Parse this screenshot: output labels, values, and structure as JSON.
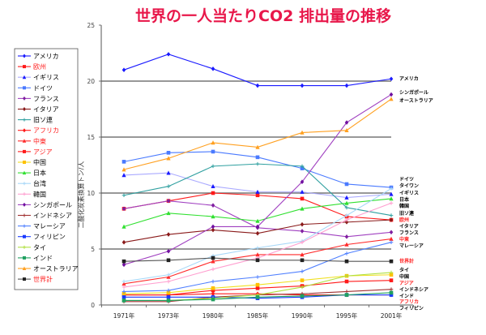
{
  "chart_data": {
    "type": "line",
    "title": "世界の一人当たりCO2 排出量の推移",
    "xlabel": "",
    "ylabel": "二酸化炭素換算トン/人",
    "categories": [
      "1971年",
      "1973年",
      "1980年",
      "1985年",
      "1990年",
      "1995年",
      "2001年"
    ],
    "ylim": [
      0,
      25
    ],
    "yticks": [
      0,
      5,
      10,
      15,
      20,
      25
    ],
    "grid": "horizontal at 5,10,15,20",
    "legend_position": "left",
    "title_color": "#e8174a",
    "series": [
      {
        "name": "アメリカ",
        "color": "#1a1aff",
        "marker": "diamond",
        "legend_color": "#000000",
        "end_label": "アメリカ",
        "end_label_color": "#000000",
        "values": [
          21.0,
          22.4,
          21.1,
          19.6,
          19.6,
          19.6,
          20.2
        ]
      },
      {
        "name": "欧州",
        "color": "#ff1a1a",
        "marker": "square",
        "legend_color": "#ff2020",
        "end_label": "欧州",
        "end_label_color": "#ff2020",
        "values": [
          8.6,
          9.3,
          10.0,
          9.8,
          9.5,
          7.9,
          7.6
        ]
      },
      {
        "name": "イギリス",
        "color": "#aaaaff",
        "marker": "triangle",
        "marker_color": "#1a1aff",
        "legend_color": "#000000",
        "end_label": "イギリス",
        "end_label_color": "#000000",
        "values": [
          11.6,
          11.8,
          10.6,
          10.1,
          10.1,
          9.6,
          9.9
        ]
      },
      {
        "name": "ドイツ",
        "color": "#4a7aff",
        "marker": "square",
        "legend_color": "#000000",
        "end_label": "ドイツ",
        "end_label_color": "#000000",
        "values": [
          12.8,
          13.6,
          13.7,
          13.2,
          12.2,
          10.8,
          10.5
        ]
      },
      {
        "name": "フランス",
        "color": "#a040c0",
        "marker": "diamond",
        "marker_color": "#8020a0",
        "legend_color": "#000000",
        "end_label": "フランス",
        "end_label_color": "#000000",
        "values": [
          8.6,
          9.3,
          8.9,
          6.9,
          6.6,
          6.1,
          6.5
        ]
      },
      {
        "name": "イタリア",
        "color": "#8a1a1a",
        "marker": "diamond",
        "legend_color": "#000000",
        "end_label": "イタリア",
        "end_label_color": "#000000",
        "values": [
          5.6,
          6.3,
          6.7,
          6.4,
          7.2,
          7.4,
          7.6
        ]
      },
      {
        "name": "旧ソ連",
        "color": "#30a0a0",
        "marker": "plus",
        "legend_color": "#000000",
        "end_label": "旧ソ連",
        "end_label_color": "#000000",
        "values": [
          9.8,
          10.6,
          12.4,
          12.6,
          12.4,
          8.7,
          8.0
        ]
      },
      {
        "name": "アフリカ",
        "color": "#ff1a1a",
        "marker": "diamond",
        "legend_color": "#ff2020",
        "end_label": "アフリカ",
        "end_label_color": "#ff2020",
        "values": [
          0.9,
          0.9,
          1.0,
          1.0,
          0.9,
          0.9,
          0.9
        ]
      },
      {
        "name": "中東",
        "color": "#ff2a2a",
        "marker": "triangle",
        "legend_color": "#ff2020",
        "end_label": "中東",
        "end_label_color": "#ff2020",
        "values": [
          1.9,
          2.5,
          3.9,
          4.5,
          4.5,
          5.4,
          5.9
        ]
      },
      {
        "name": "アジア",
        "color": "#ff1a1a",
        "marker": "square",
        "legend_color": "#ff2020",
        "end_label": "アジア",
        "end_label_color": "#ff2020",
        "values": [
          0.9,
          0.9,
          1.3,
          1.5,
          1.7,
          2.1,
          2.2
        ]
      },
      {
        "name": "中国",
        "color": "#f0e020",
        "marker": "square",
        "marker_color": "#ffc000",
        "legend_color": "#000000",
        "end_label": "中国",
        "end_label_color": "#000000",
        "values": [
          1.0,
          1.1,
          1.5,
          1.8,
          2.2,
          2.6,
          2.7
        ]
      },
      {
        "name": "日本",
        "color": "#30e030",
        "marker": "triangle",
        "legend_color": "#000000",
        "end_label": "日本",
        "end_label_color": "#000000",
        "values": [
          7.0,
          8.2,
          7.9,
          7.5,
          8.6,
          9.1,
          9.5
        ]
      },
      {
        "name": "台湾",
        "color": "#a8d8f8",
        "marker": "plus",
        "legend_color": "#000000",
        "end_label": "タイワン",
        "end_label_color": "#000000",
        "values": [
          2.1,
          2.7,
          4.4,
          5.1,
          5.7,
          8.0,
          10.4
        ]
      },
      {
        "name": "韓国",
        "color": "#ffa0d0",
        "marker": "plus",
        "legend_color": "#000000",
        "end_label": "韓国",
        "end_label_color": "#000000",
        "values": [
          1.6,
          2.1,
          3.2,
          4.2,
          5.6,
          7.6,
          9.1
        ]
      },
      {
        "name": "シンガポール",
        "color": "#a040c0",
        "marker": "diamond",
        "marker_color": "#7010a0",
        "legend_color": "#000000",
        "end_label": "シンガポール",
        "end_label_color": "#000000",
        "values": [
          3.6,
          4.8,
          7.0,
          7.0,
          11.0,
          16.3,
          18.8
        ]
      },
      {
        "name": "インドネシア",
        "color": "#a03030",
        "marker": "plus",
        "legend_color": "#000000",
        "end_label": "インドネシア",
        "end_label_color": "#000000",
        "values": [
          0.3,
          0.3,
          0.7,
          0.9,
          1.0,
          1.2,
          1.4
        ]
      },
      {
        "name": "マレーシア",
        "color": "#5080ff",
        "marker": "plus",
        "legend_color": "#000000",
        "end_label": "マレーシア",
        "end_label_color": "#000000",
        "values": [
          1.2,
          1.3,
          2.1,
          2.5,
          3.0,
          4.6,
          5.6
        ]
      },
      {
        "name": "フィリピン",
        "color": "#1a3aff",
        "marker": "square",
        "legend_color": "#000000",
        "end_label": "フィリピン",
        "end_label_color": "#000000",
        "values": [
          0.7,
          0.7,
          0.7,
          0.6,
          0.7,
          0.9,
          0.9
        ]
      },
      {
        "name": "タイ",
        "color": "#b0e040",
        "marker": "plus",
        "legend_color": "#000000",
        "end_label": "タイ",
        "end_label_color": "#000000",
        "values": [
          0.4,
          0.4,
          0.6,
          0.9,
          1.6,
          2.6,
          2.9
        ]
      },
      {
        "name": "インド",
        "color": "#20a060",
        "marker": "square",
        "legend_color": "#000000",
        "end_label": "インド",
        "end_label_color": "#000000",
        "values": [
          0.4,
          0.4,
          0.5,
          0.7,
          0.8,
          0.9,
          1.1
        ]
      },
      {
        "name": "オーストラリア",
        "color": "#ffa020",
        "marker": "triangle",
        "legend_color": "#000000",
        "end_label": "オーストラリア",
        "end_label_color": "#000000",
        "values": [
          12.1,
          13.1,
          14.5,
          14.1,
          15.4,
          15.6,
          18.4
        ]
      },
      {
        "name": "世界計",
        "color": "#555555",
        "marker": "square",
        "marker_color": "#222222",
        "legend_color": "#ff2020",
        "end_label": "世界計",
        "end_label_color": "#ff2020",
        "values": [
          3.9,
          4.0,
          4.2,
          4.0,
          4.0,
          3.9,
          3.9
        ]
      }
    ],
    "end_label_order": [
      "アメリカ",
      "シンガポール",
      "オーストラリア",
      "ドイツ",
      "タイワン",
      "イギリス",
      "日本",
      "韓国",
      "旧ソ連",
      "欧州",
      "イタリア",
      "フランス",
      "中東",
      "マレーシア",
      "世界計",
      "タイ",
      "中国",
      "アジア",
      "インドネシア",
      "インド",
      "アフリカ",
      "フィリピン"
    ]
  }
}
